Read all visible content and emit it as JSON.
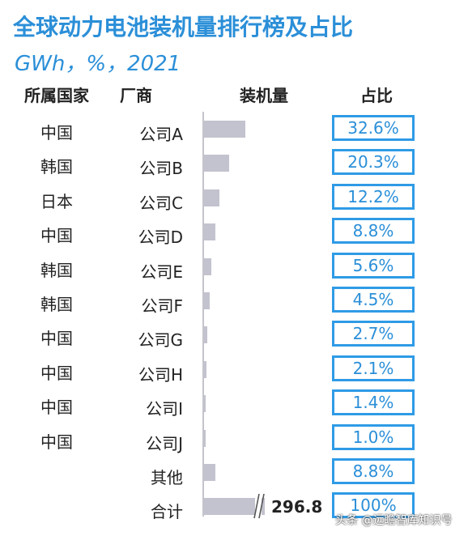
{
  "title": "全球动力电池装机量排行榜及占比",
  "subtitle": "GWh，%，2021",
  "headers": {
    "country": "所属国家",
    "maker": "厂商",
    "volume": "装机量",
    "share": "占比"
  },
  "chart_data": {
    "type": "bar",
    "orientation": "horizontal",
    "title": "全球动力电池装机量排行榜及占比",
    "subtitle": "GWh，%，2021",
    "categories": [
      "公司A",
      "公司B",
      "公司C",
      "公司D",
      "公司E",
      "公司F",
      "公司G",
      "公司H",
      "公司I",
      "公司J",
      "其他",
      "合计"
    ],
    "countries": [
      "中国",
      "韩国",
      "日本",
      "中国",
      "韩国",
      "韩国",
      "中国",
      "中国",
      "中国",
      "中国",
      "",
      ""
    ],
    "share_labels": [
      "32.6%",
      "20.3%",
      "12.2%",
      "8.8%",
      "5.6%",
      "4.5%",
      "2.7%",
      "2.1%",
      "1.4%",
      "1.0%",
      "8.8%",
      "100%"
    ],
    "shares": [
      32.6,
      20.3,
      12.2,
      8.8,
      5.6,
      4.5,
      2.7,
      2.1,
      1.4,
      1.0,
      8.8,
      100
    ],
    "total_label": "296.8",
    "total_gwh": 296.8,
    "axis_break_on_total": true
  },
  "colors": {
    "title": "#2b8fd8",
    "bar": "#c3c3cf",
    "share_border": "#2f9be6",
    "share_text": "#2b8fd8"
  },
  "watermark": "头条 @远瞻智库知识号"
}
